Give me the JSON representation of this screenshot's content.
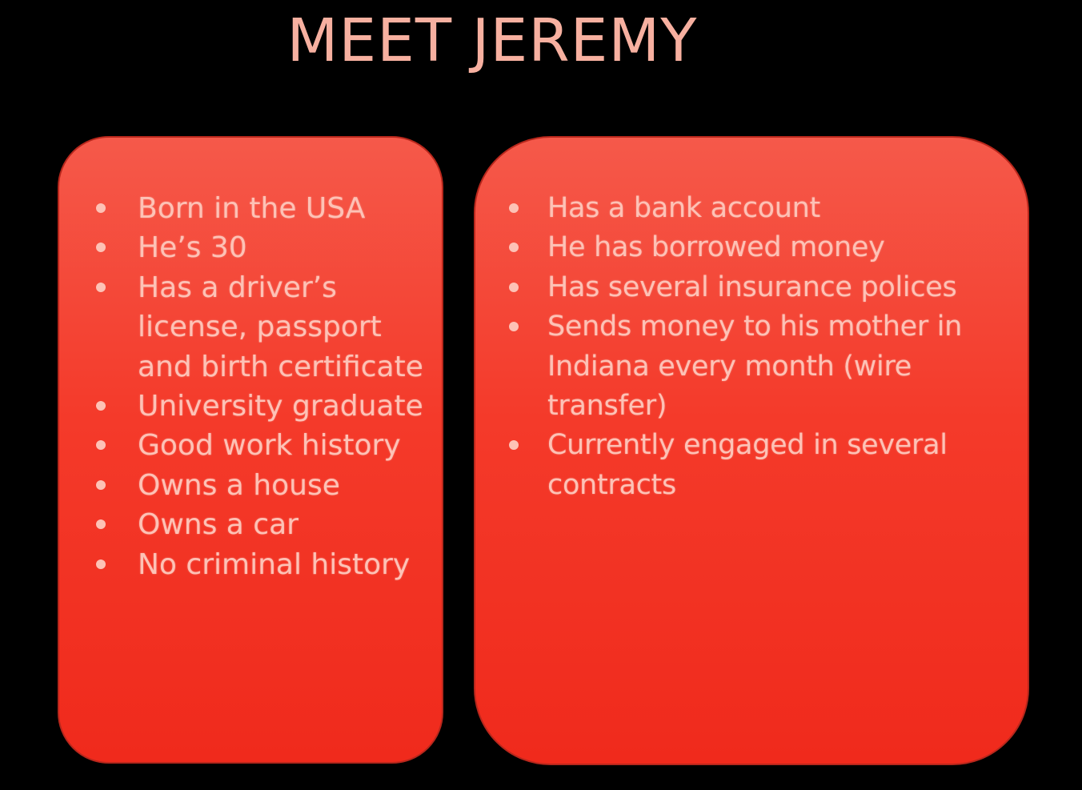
{
  "title": "MEET JEREMY",
  "left_panel": {
    "items": [
      "Born in the USA",
      "He’s 30",
      "Has a driver’s license, passport and birth certificate",
      "University graduate",
      "Good work history",
      "Owns a house",
      "Owns a car",
      "No criminal history"
    ]
  },
  "right_panel": {
    "items": [
      "Has a bank account",
      "He has borrowed money",
      "Has several insurance polices",
      "Sends money to his mother in Indiana every month (wire transfer)",
      "Currently engaged in several contracts"
    ]
  },
  "colors": {
    "background": "#000000",
    "title": "#f7b0a0",
    "panel_fill": "#f43a2a",
    "text": "#fdc2b6"
  }
}
